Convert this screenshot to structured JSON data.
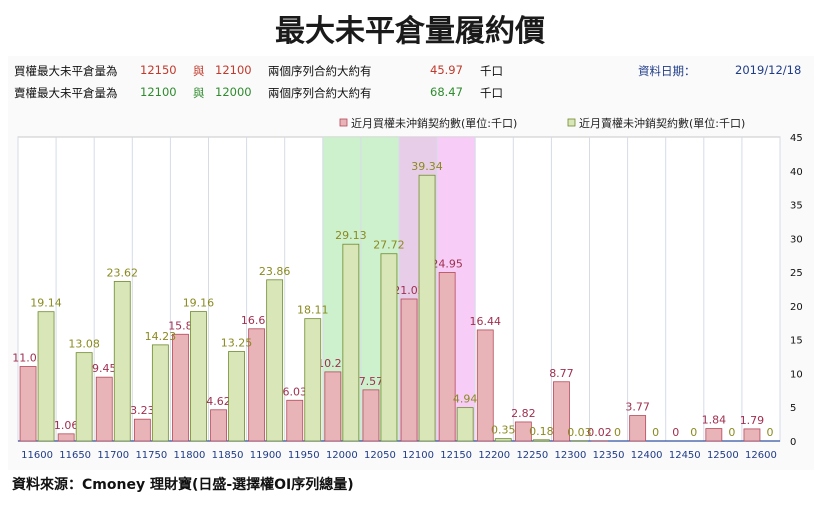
{
  "title": "最大未平倉量履約價",
  "info": {
    "call": {
      "label": "買權最大未平倉量為",
      "strike1": "12150",
      "conj": "與",
      "strike2": "12100",
      "desc": "兩個序列合約大約有",
      "amount": "45.97",
      "unit": "千口"
    },
    "put": {
      "label": "賣權最大未平倉量為",
      "strike1": "12100",
      "conj": "與",
      "strike2": "12000",
      "desc": "兩個序列合約大約有",
      "amount": "68.47",
      "unit": "千口"
    },
    "date_label": "資料日期：",
    "date": "2019/12/18"
  },
  "source": "資料來源：Cmoney 理財寶(日盛-選擇權OI序列總量)",
  "chart_data": {
    "type": "bar",
    "categories": [
      "11600",
      "11650",
      "11700",
      "11750",
      "11800",
      "11850",
      "11900",
      "11950",
      "12000",
      "12050",
      "12100",
      "12150",
      "12200",
      "12250",
      "12300",
      "12350",
      "12400",
      "12450",
      "12500",
      "12600"
    ],
    "series": [
      {
        "name": "近月買權未沖銷契約數(單位:千口)",
        "color": "#e8b4b8",
        "stroke": "#b5485a",
        "label_color": "#a03050",
        "values": [
          11.03,
          1.06,
          9.45,
          3.23,
          15.8,
          4.62,
          16.61,
          6.03,
          10.23,
          7.57,
          21.02,
          24.95,
          16.44,
          2.82,
          8.77,
          0.02,
          3.77,
          0,
          1.84,
          1.79
        ],
        "labels": [
          "11.03",
          "1.06",
          "9.45",
          "3.23",
          "15.8",
          "4.62",
          "16.61",
          "6.03",
          "10.23",
          "7.57",
          "21.02",
          "24.95",
          "16.44",
          "2.82",
          "8.77",
          "0.02",
          "3.77",
          "0",
          "1.84",
          "1.79"
        ]
      },
      {
        "name": "近月賣權未沖銷契約數(單位:千口)",
        "color": "#d9e6b8",
        "stroke": "#6f8a2e",
        "label_color": "#8a8a20",
        "values": [
          19.14,
          13.08,
          23.62,
          14.23,
          19.16,
          13.25,
          23.86,
          18.11,
          29.13,
          27.72,
          39.34,
          4.94,
          0.35,
          0.18,
          0.03,
          0,
          0,
          0,
          0,
          0
        ],
        "labels": [
          "19.14",
          "13.08",
          "23.62",
          "14.23",
          "19.16",
          "13.25",
          "23.86",
          "18.11",
          "29.13",
          "27.72",
          "39.34",
          "4.94",
          "0.35",
          "0.18",
          "0.03",
          "0",
          "0",
          "0",
          "0",
          "0"
        ]
      }
    ],
    "y_ticks": [
      "0",
      "5",
      "10",
      "15",
      "20",
      "25",
      "30",
      "35",
      "40",
      "45"
    ],
    "ylim": [
      0,
      45
    ],
    "highlights": [
      {
        "from": "12000",
        "to": "12050",
        "color": "#c8f0c8"
      },
      {
        "from": "12100",
        "to": "12100",
        "color": "#e6c8e6"
      },
      {
        "from": "12150",
        "to": "12150",
        "color": "#f6c8f6"
      }
    ],
    "grid": true,
    "legend_position": "top-right",
    "y_axis_side": "right",
    "axis_colors": {
      "x_labels": "#1f3c88",
      "y_labels": "#111111"
    }
  }
}
